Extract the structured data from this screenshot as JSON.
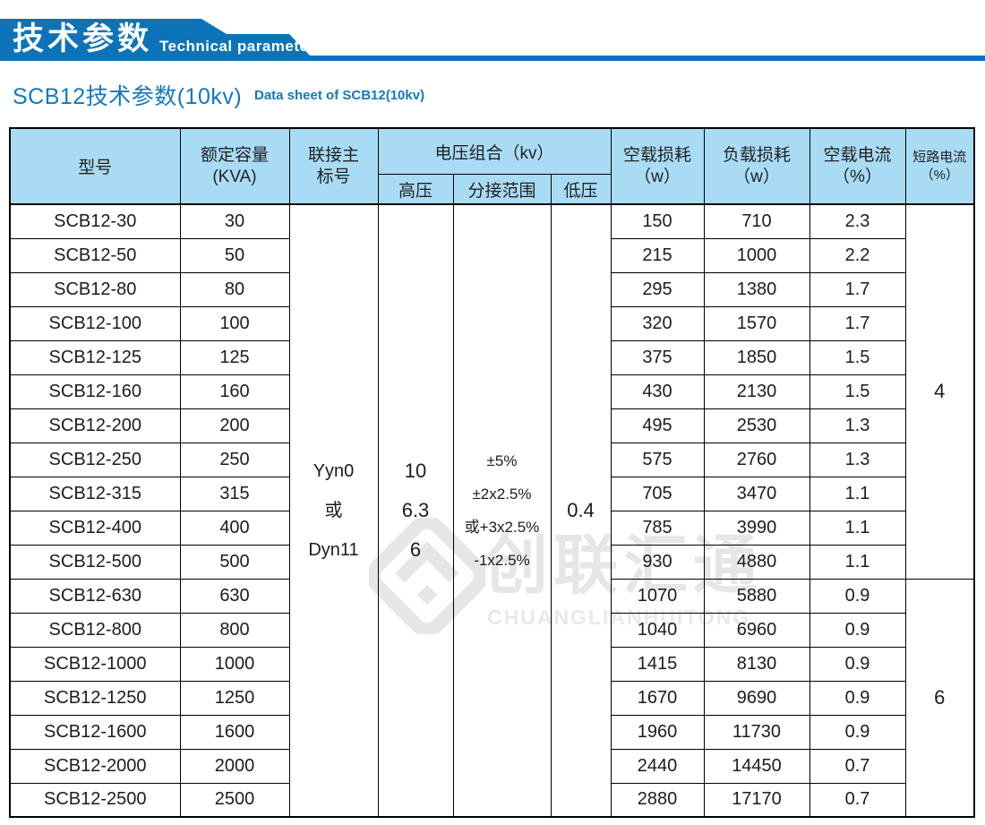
{
  "banner": {
    "title_zh": "技术参数",
    "title_en": "Technical parameter",
    "bg_color": "#0d73b9"
  },
  "section": {
    "title_zh": "SCB12技术参数(10kv)",
    "title_en": "Data sheet of SCB12(10kv)",
    "color": "#1379bd"
  },
  "watermark": {
    "logo": "diamond-logo",
    "text_zh": "创联汇通",
    "text_en": "CHUANGLIANHUITONG",
    "color": "#e6e6e6"
  },
  "table": {
    "header_bg": "#a9dcf4",
    "border_color": "#000000",
    "headers": {
      "model": "型号",
      "capacity_line1": "额定容量",
      "capacity_line2": "(KVA)",
      "vector_line1": "联接主",
      "vector_line2": "标号",
      "voltage_group": "电压组合（kv）",
      "hv": "高压",
      "tapping": "分接范围",
      "lv": "低压",
      "no_load_loss_line1": "空载损耗",
      "no_load_loss_line2": "（w）",
      "load_loss_line1": "负载损耗",
      "load_loss_line2": "（w）",
      "no_load_current_line1": "空载电流",
      "no_load_current_line2": "（%）",
      "short_circuit_line1": "短路电流",
      "short_circuit_line2": "（%）"
    },
    "merged": {
      "vector_group": [
        "Yyn0",
        "或",
        "Dyn11"
      ],
      "hv_values": [
        "10",
        "6.3",
        "6"
      ],
      "tapping_values": [
        "±5%",
        "±2x2.5%",
        "或+3x2.5%",
        "-1x2.5%"
      ],
      "lv_value": "0.4",
      "short_circuit_group1": "4",
      "short_circuit_group1_rows": 11,
      "short_circuit_group2": "6",
      "short_circuit_group2_rows": 7
    },
    "rows": [
      {
        "model": "SCB12-30",
        "capacity": "30",
        "no_load_loss": "150",
        "load_loss": "710",
        "no_load_current": "2.3"
      },
      {
        "model": "SCB12-50",
        "capacity": "50",
        "no_load_loss": "215",
        "load_loss": "1000",
        "no_load_current": "2.2"
      },
      {
        "model": "SCB12-80",
        "capacity": "80",
        "no_load_loss": "295",
        "load_loss": "1380",
        "no_load_current": "1.7"
      },
      {
        "model": "SCB12-100",
        "capacity": "100",
        "no_load_loss": "320",
        "load_loss": "1570",
        "no_load_current": "1.7"
      },
      {
        "model": "SCB12-125",
        "capacity": "125",
        "no_load_loss": "375",
        "load_loss": "1850",
        "no_load_current": "1.5"
      },
      {
        "model": "SCB12-160",
        "capacity": "160",
        "no_load_loss": "430",
        "load_loss": "2130",
        "no_load_current": "1.5"
      },
      {
        "model": "SCB12-200",
        "capacity": "200",
        "no_load_loss": "495",
        "load_loss": "2530",
        "no_load_current": "1.3"
      },
      {
        "model": "SCB12-250",
        "capacity": "250",
        "no_load_loss": "575",
        "load_loss": "2760",
        "no_load_current": "1.3"
      },
      {
        "model": "SCB12-315",
        "capacity": "315",
        "no_load_loss": "705",
        "load_loss": "3470",
        "no_load_current": "1.1"
      },
      {
        "model": "SCB12-400",
        "capacity": "400",
        "no_load_loss": "785",
        "load_loss": "3990",
        "no_load_current": "1.1"
      },
      {
        "model": "SCB12-500",
        "capacity": "500",
        "no_load_loss": "930",
        "load_loss": "4880",
        "no_load_current": "1.1"
      },
      {
        "model": "SCB12-630",
        "capacity": "630",
        "no_load_loss": "1070",
        "load_loss": "5880",
        "no_load_current": "0.9"
      },
      {
        "model": "SCB12-800",
        "capacity": "800",
        "no_load_loss": "1040",
        "load_loss": "6960",
        "no_load_current": "0.9"
      },
      {
        "model": "SCB12-1000",
        "capacity": "1000",
        "no_load_loss": "1415",
        "load_loss": "8130",
        "no_load_current": "0.9"
      },
      {
        "model": "SCB12-1250",
        "capacity": "1250",
        "no_load_loss": "1670",
        "load_loss": "9690",
        "no_load_current": "0.9"
      },
      {
        "model": "SCB12-1600",
        "capacity": "1600",
        "no_load_loss": "1960",
        "load_loss": "11730",
        "no_load_current": "0.9"
      },
      {
        "model": "SCB12-2000",
        "capacity": "2000",
        "no_load_loss": "2440",
        "load_loss": "14450",
        "no_load_current": "0.7"
      },
      {
        "model": "SCB12-2500",
        "capacity": "2500",
        "no_load_loss": "2880",
        "load_loss": "17170",
        "no_load_current": "0.7"
      }
    ]
  }
}
